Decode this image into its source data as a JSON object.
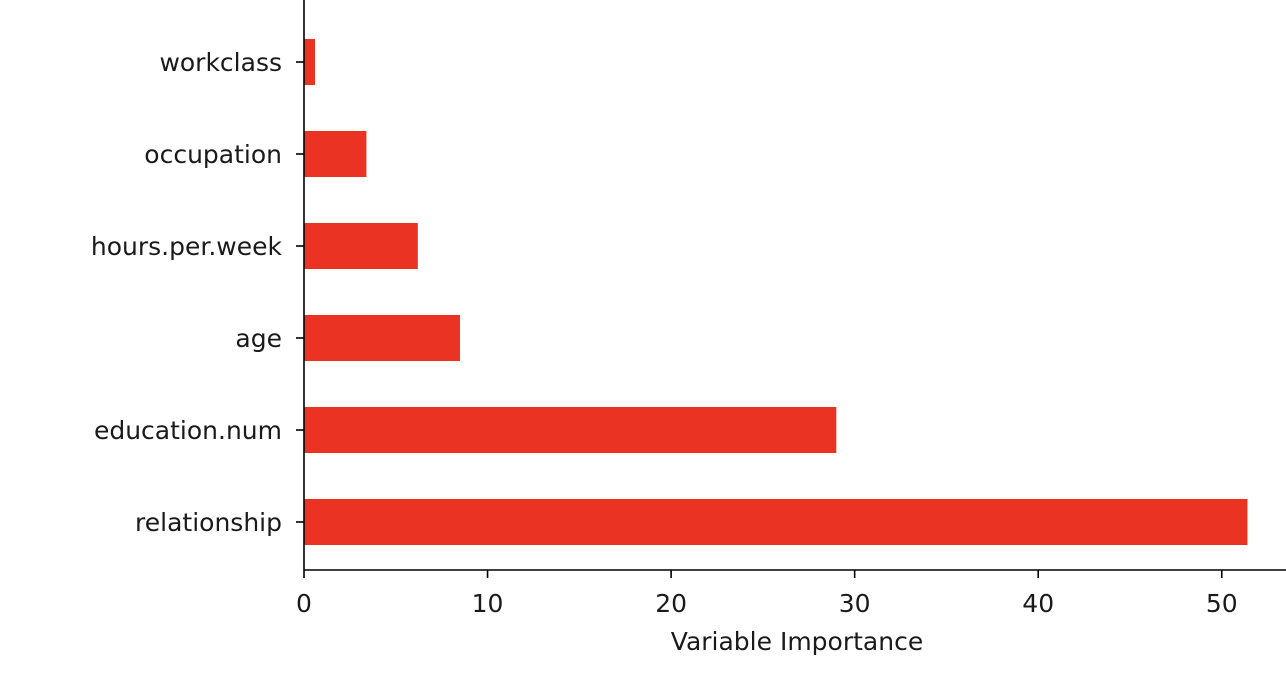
{
  "chart_data": {
    "type": "bar",
    "orientation": "horizontal",
    "categories": [
      "relationship",
      "education.num",
      "age",
      "hours.per.week",
      "occupation",
      "workclass"
    ],
    "values": [
      51.4,
      29.0,
      8.5,
      6.2,
      3.4,
      0.6
    ],
    "xlabel": "Variable Importance",
    "ylabel": "",
    "xlim": [
      0,
      53.5
    ],
    "xticks": [
      0,
      10,
      20,
      30,
      40,
      50
    ],
    "bar_color": "#EA3323",
    "grid": false,
    "legend": "none"
  }
}
